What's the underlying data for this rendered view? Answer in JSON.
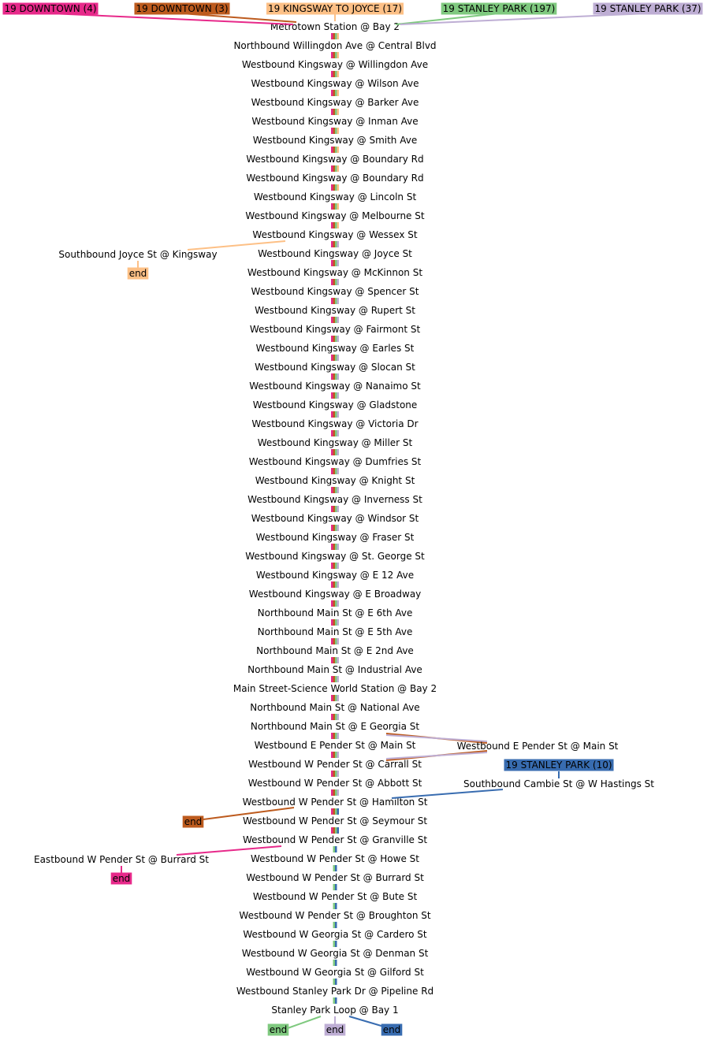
{
  "colors": {
    "downtown4": "#e7298a",
    "downtown3": "#bd5b1e",
    "kingsway_joyce": "#fdc086",
    "stanley_park197": "#7fc97f",
    "stanley_park37": "#beaed4",
    "stanley_park10": "#386cb0"
  },
  "routes": [
    {
      "id": "downtown4",
      "label": "19 DOWNTOWN (4)",
      "color_key": "downtown4"
    },
    {
      "id": "downtown3",
      "label": "19 DOWNTOWN (3)",
      "color_key": "downtown3"
    },
    {
      "id": "kingsway_joyce",
      "label": "19 KINGSWAY TO JOYCE (17)",
      "color_key": "kingsway_joyce"
    },
    {
      "id": "stanley_park197",
      "label": "19 STANLEY PARK (197)",
      "color_key": "stanley_park197"
    },
    {
      "id": "stanley_park37",
      "label": "19 STANLEY PARK (37)",
      "color_key": "stanley_park37"
    },
    {
      "id": "stanley_park10",
      "label": "19 STANLEY PARK (10)",
      "color_key": "stanley_park10"
    }
  ],
  "main_stops": [
    "Metrotown Station @ Bay 2",
    "Northbound Willingdon Ave @ Central Blvd",
    "Westbound Kingsway @ Willingdon Ave",
    "Westbound Kingsway @ Wilson Ave",
    "Westbound Kingsway @ Barker Ave",
    "Westbound Kingsway @ Inman Ave",
    "Westbound Kingsway @ Smith Ave",
    "Westbound Kingsway @ Boundary Rd",
    "Westbound Kingsway @ Boundary Rd",
    "Westbound Kingsway @ Lincoln St",
    "Westbound Kingsway @ Melbourne St",
    "Westbound Kingsway @ Wessex St",
    "Westbound Kingsway @ Joyce St",
    "Westbound Kingsway @ McKinnon St",
    "Westbound Kingsway @ Spencer St",
    "Westbound Kingsway @ Rupert St",
    "Westbound Kingsway @ Fairmont St",
    "Westbound Kingsway @ Earles St",
    "Westbound Kingsway @ Slocan St",
    "Westbound Kingsway @ Nanaimo St",
    "Westbound Kingsway @ Gladstone",
    "Westbound Kingsway @ Victoria Dr",
    "Westbound Kingsway @ Miller St",
    "Westbound Kingsway @ Dumfries St",
    "Westbound Kingsway @ Knight St",
    "Westbound Kingsway @ Inverness St",
    "Westbound Kingsway @ Windsor St",
    "Westbound Kingsway @ Fraser St",
    "Westbound Kingsway @ St. George St",
    "Westbound Kingsway @ E 12 Ave",
    "Westbound Kingsway @ E Broadway",
    "Northbound Main St @ E 6th Ave",
    "Northbound Main St @ E 5th Ave",
    "Northbound Main St @ E 2nd Ave",
    "Northbound Main St @ Industrial Ave",
    "Main Street-Science World Station @ Bay 2",
    "Northbound Main St @ National Ave",
    "Northbound Main St @ E Georgia St",
    "Westbound E Pender St @ Main St",
    "Westbound W Pender St @ Carrall St",
    "Westbound W Pender St @ Abbott St",
    "Westbound W Pender St @ Hamilton St",
    "Westbound W Pender St @ Seymour St",
    "Westbound W Pender St @ Granville St",
    "Westbound W Pender St @ Howe St",
    "Westbound W Pender St @ Burrard St",
    "Westbound W Pender St @ Bute St",
    "Westbound W Pender St @ Broughton St",
    "Westbound W Georgia St @ Cardero St",
    "Westbound W Georgia St @ Denman St",
    "Westbound W Georgia St @ Gilford St",
    "Westbound Stanley Park Dr @ Pipeline Rd",
    "Stanley Park Loop @ Bay 1"
  ],
  "side_stops": {
    "joyce_branch": "Southbound Joyce St @ Kingsway",
    "pender_branch": "Westbound E Pender St @ Main St",
    "cambie_branch": "Southbound Cambie St @ W Hastings St",
    "burrard_branch": "Eastbound W Pender St @ Burrard St"
  },
  "end_label": "end"
}
